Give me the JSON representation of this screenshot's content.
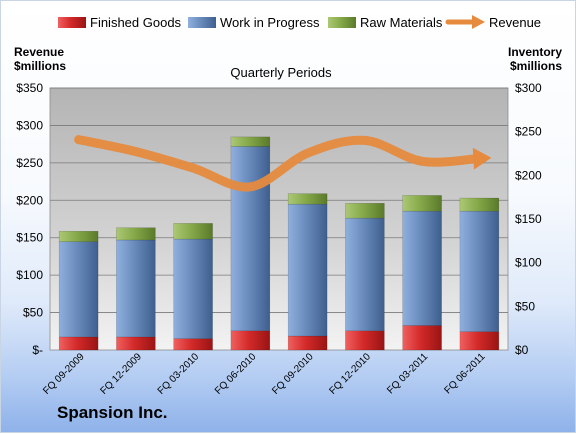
{
  "chart_data": {
    "type": "bar",
    "stacked": true,
    "title": "Quarterly Periods",
    "company": "Spansion Inc.",
    "categories": [
      "FQ 09-2009",
      "FQ 12-2009",
      "FQ 03-2010",
      "FQ 06-2010",
      "FQ 09-2010",
      "FQ 12-2010",
      "FQ 03-2011",
      "FQ 06-2011"
    ],
    "left_axis": {
      "label_line1": "Revenue",
      "label_line2": "$millions",
      "ylim": [
        0,
        350
      ],
      "ticks": [
        0,
        50,
        100,
        150,
        200,
        250,
        300,
        350
      ],
      "tick_labels": [
        "$-",
        "$50",
        "$100",
        "$150",
        "$200",
        "$250",
        "$300",
        "$350"
      ]
    },
    "right_axis": {
      "label_line1": "Inventory",
      "label_line2": "$millions",
      "ylim": [
        0,
        300
      ],
      "ticks": [
        0,
        50,
        100,
        150,
        200,
        250,
        300
      ],
      "tick_labels": [
        "$0",
        "$50",
        "$100",
        "$150",
        "$200",
        "$250",
        "$300"
      ]
    },
    "series": [
      {
        "name": "Finished Goods",
        "axis": "right",
        "color": "#d42a2a",
        "values": [
          15,
          15,
          13,
          22,
          16,
          22,
          28,
          21
        ]
      },
      {
        "name": "Work in Progress",
        "axis": "right",
        "color": "#6d8ebd",
        "values": [
          109,
          111,
          114,
          211,
          151,
          129,
          131,
          138
        ]
      },
      {
        "name": "Raw Materials",
        "axis": "right",
        "color": "#86a94a",
        "values": [
          12,
          14,
          18,
          11,
          12,
          17,
          18,
          15
        ]
      },
      {
        "name": "Revenue",
        "axis": "left",
        "type": "line",
        "color": "#e68a3e",
        "values": [
          281,
          265,
          243,
          218,
          263,
          280,
          252,
          256
        ]
      }
    ],
    "grid": true,
    "legend_position": "top"
  }
}
